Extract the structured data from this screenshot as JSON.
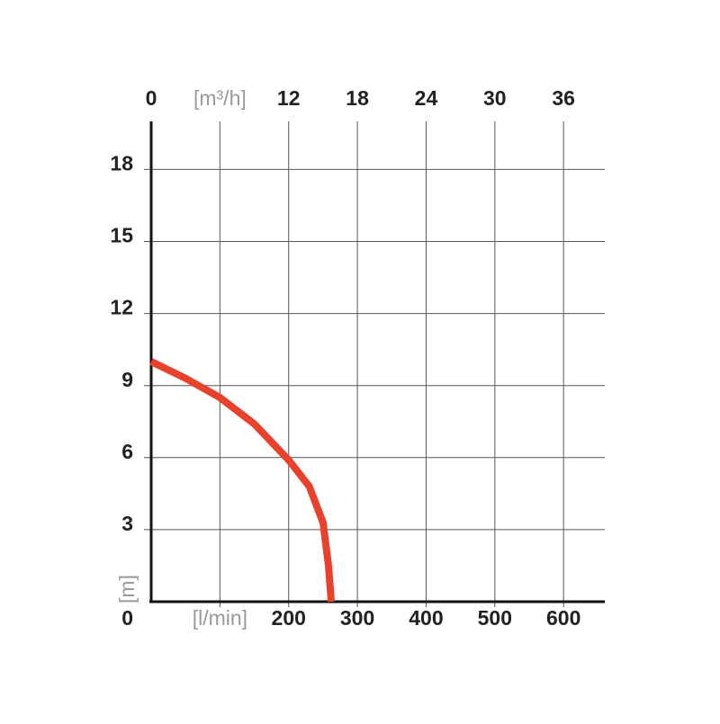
{
  "chart_data": {
    "type": "line",
    "x": [
      0,
      50,
      100,
      150,
      200,
      230,
      250,
      258,
      262
    ],
    "values": [
      10,
      9.3,
      8.5,
      7.4,
      5.9,
      4.8,
      3.3,
      1.5,
      0
    ],
    "color": "#e8412c",
    "xlim": [
      0,
      660
    ],
    "xticks": [
      {
        "value": 100,
        "label": "[l/min]"
      },
      200,
      300,
      400,
      500,
      600
    ],
    "x2lim": [
      0,
      39.6
    ],
    "x2ticks": [
      0,
      {
        "value": 6,
        "label": "[m³/h]"
      },
      12,
      18,
      24,
      30,
      36
    ],
    "ylim": [
      0,
      20
    ],
    "yticks": [
      0,
      3,
      6,
      9,
      12,
      15,
      18
    ],
    "ylabel": "[m]",
    "grid": true
  }
}
